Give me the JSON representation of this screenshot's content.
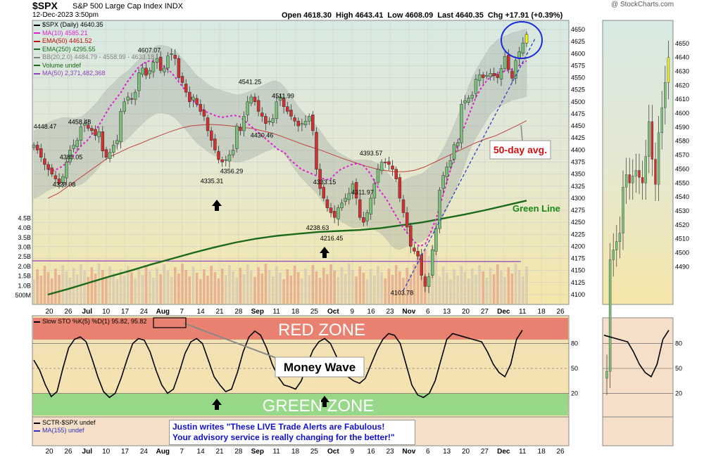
{
  "header": {
    "symbol": "$SPX",
    "description": "S&P 500 Large Cap Index",
    "exchange": "INDX",
    "date": "12-Dec-2023 3:50pm",
    "open": "4618.30",
    "high": "4643.41",
    "low": "4608.09",
    "last": "4640.35",
    "change": "+17.91 (+0.39%)",
    "copyright": "@ StockCharts.com"
  },
  "legend": [
    {
      "label": "$SPX (Daily) 4640.35",
      "color": "#000000"
    },
    {
      "label": "MA(10) 4585.21",
      "color": "#e020d0"
    },
    {
      "label": "EMA(50) 4461.52",
      "color": "#c01010"
    },
    {
      "label": "EMA(250) 4295.55",
      "color": "#1a6a1a"
    },
    {
      "label": "BB(20,2.0) 4484.79 - 4558.99 - 4633.18",
      "color": "#808080"
    },
    {
      "label": "Volume undef",
      "color": "#1a6a1a"
    },
    {
      "label": "MA(50) 2,371,482,368",
      "color": "#9040c0"
    }
  ],
  "annotations": {
    "fifty_day": "50-day avg.",
    "green_line": "Green Line",
    "red_zone": "RED ZONE",
    "green_zone": "GREEN ZONE",
    "money_wave": "Money Wave",
    "quote_line1": "Justin writes \"These LIVE Trade Alerts are Fabulous!",
    "quote_line2": "Your advisory service is really changing for the better!\""
  },
  "stoch_legend": {
    "label": "Slow STO %K(5) %D(1) 95.82, 95.82",
    "color": "#000000"
  },
  "sctr_legend": [
    {
      "label": "SCTR-$SPX undef",
      "color": "#000000"
    },
    {
      "label": "MA(155) undef",
      "color": "#3030c0"
    }
  ],
  "chart_data": {
    "type": "candlestick",
    "y_axis": {
      "min": 4100,
      "max": 4650,
      "ticks": [
        4100,
        4125,
        4150,
        4175,
        4200,
        4225,
        4250,
        4275,
        4300,
        4325,
        4350,
        4375,
        4400,
        4425,
        4450,
        4475,
        4500,
        4525,
        4550,
        4575,
        4600,
        4625,
        4650
      ]
    },
    "volume_axis_labels": [
      "500M",
      "1.0B",
      "1.5B",
      "2.0B",
      "2.5B",
      "3.0B",
      "3.5B",
      "4.0B",
      "4.5B"
    ],
    "x_axis_labels": [
      "20",
      "26",
      "Jul",
      "10",
      "17",
      "24",
      "Aug",
      "7",
      "14",
      "21",
      "28",
      "Sep",
      "11",
      "18",
      "25",
      "Oct",
      "9",
      "16",
      "23",
      "Nov",
      "6",
      "13",
      "20",
      "27",
      "Dec",
      "11",
      "18",
      "26"
    ],
    "month_labels": [
      "Jul",
      "Aug",
      "Sep",
      "Oct",
      "Nov",
      "Dec"
    ],
    "price_labels": [
      {
        "label": "4448.47",
        "value": 4448.47
      },
      {
        "label": "4458.48",
        "value": 4458.48
      },
      {
        "label": "4385.05",
        "value": 4385.05
      },
      {
        "label": "4328.08",
        "value": 4328.08
      },
      {
        "label": "4607.07",
        "value": 4607.07
      },
      {
        "label": "4335.31",
        "value": 4335.31
      },
      {
        "label": "4356.29",
        "value": 4356.29
      },
      {
        "label": "4541.25",
        "value": 4541.25
      },
      {
        "label": "4430.46",
        "value": 4430.46
      },
      {
        "label": "4511.99",
        "value": 4511.99
      },
      {
        "label": "4333.15",
        "value": 4333.15
      },
      {
        "label": "4238.63",
        "value": 4238.63
      },
      {
        "label": "4216.45",
        "value": 4216.45
      },
      {
        "label": "4393.57",
        "value": 4393.57
      },
      {
        "label": "4311.97",
        "value": 4311.97
      },
      {
        "label": "4103.78",
        "value": 4103.78
      }
    ],
    "closes": [
      4410,
      4400,
      4385,
      4370,
      4360,
      4350,
      4340,
      4330,
      4345,
      4375,
      4400,
      4410,
      4420,
      4448,
      4455,
      4445,
      4440,
      4430,
      4438,
      4398,
      4385,
      4395,
      4410,
      4420,
      4480,
      4500,
      4510,
      4505,
      4520,
      4560,
      4570,
      4555,
      4565,
      4582,
      4590,
      4565,
      4570,
      4595,
      4600,
      4590,
      4550,
      4540,
      4520,
      4500,
      4510,
      4495,
      4480,
      4470,
      4440,
      4420,
      4400,
      4380,
      4375,
      4380,
      4390,
      4400,
      4450,
      4440,
      4470,
      4500,
      4510,
      4500,
      4480,
      4470,
      4455,
      4460,
      4465,
      4500,
      4510,
      4490,
      4480,
      4470,
      4460,
      4450,
      4455,
      4460,
      4470,
      4440,
      4360,
      4320,
      4300,
      4280,
      4270,
      4260,
      4280,
      4290,
      4300,
      4310,
      4330,
      4300,
      4260,
      4250,
      4270,
      4300,
      4330,
      4360,
      4375,
      4373,
      4370,
      4360,
      4340,
      4300,
      4270,
      4240,
      4200,
      4190,
      4180,
      4140,
      4117,
      4137,
      4193,
      4237,
      4317,
      4347,
      4365,
      4378,
      4411,
      4415,
      4495,
      4502,
      4508,
      4514,
      4547,
      4556,
      4550,
      4555,
      4559,
      4554,
      4550,
      4569,
      4594,
      4567,
      4549,
      4586,
      4604,
      4622,
      4640
    ],
    "ma10": [
      4360,
      4358,
      4362,
      4370,
      4380,
      4395,
      4410,
      4420,
      4435,
      4450,
      4470,
      4490,
      4505,
      4520,
      4540,
      4555,
      4570,
      4580,
      4585,
      4584,
      4580,
      4570,
      4560,
      4545,
      4530,
      4515,
      4500,
      4488,
      4480,
      4475,
      4470,
      4468,
      4470,
      4472,
      4470,
      4460,
      4450,
      4440,
      4430,
      4420,
      4410,
      4400,
      4395,
      4380,
      4370,
      4360,
      4355,
      4350,
      4345,
      4340,
      4338,
      4350,
      4360,
      4365,
      4370,
      4372,
      4368,
      4355,
      4335,
      4315,
      4300,
      4280,
      4260,
      4240,
      4225,
      4210,
      4200,
      4205,
      4230,
      4260,
      4300,
      4340,
      4380,
      4420,
      4450,
      4480,
      4510,
      4530,
      4545,
      4555,
      4560,
      4563,
      4566,
      4570,
      4578,
      4585
    ],
    "ema50": [
      4300,
      4310,
      4325,
      4340,
      4355,
      4370,
      4385,
      4395,
      4405,
      4413,
      4422,
      4430,
      4438,
      4445,
      4450,
      4452,
      4453,
      4452,
      4450,
      4447,
      4445,
      4440,
      4435,
      4428,
      4420,
      4412,
      4405,
      4398,
      4390,
      4382,
      4375,
      4368,
      4362,
      4358,
      4355,
      4355,
      4358,
      4365,
      4375,
      4385,
      4395,
      4405,
      4415,
      4423,
      4430,
      4440,
      4450,
      4461
    ],
    "ema250": [
      4100,
      4112,
      4125,
      4138,
      4150,
      4163,
      4175,
      4187,
      4198,
      4208,
      4216,
      4222,
      4226,
      4230,
      4232,
      4234,
      4238,
      4244,
      4250,
      4258,
      4266,
      4275,
      4285,
      4295
    ],
    "vol_ma50": 2371482368,
    "stoch_k": [
      60,
      48,
      30,
      16,
      22,
      50,
      75,
      85,
      88,
      82,
      62,
      40,
      22,
      15,
      20,
      38,
      60,
      80,
      86,
      84,
      70,
      48,
      30,
      20,
      25,
      45,
      68,
      82,
      86,
      80,
      60,
      40,
      30,
      22,
      25,
      45,
      70,
      88,
      95,
      90,
      75,
      55,
      40,
      30,
      28,
      25,
      35,
      55,
      72,
      82,
      86,
      80,
      65,
      50,
      40,
      35,
      32,
      38,
      55,
      72,
      85,
      92,
      90,
      80,
      55,
      30,
      18,
      15,
      20,
      35,
      60,
      85,
      92,
      90,
      88,
      86,
      84,
      82,
      70,
      55,
      45,
      40,
      55,
      85,
      96
    ],
    "stoch_levels": [
      20,
      50,
      80
    ]
  }
}
